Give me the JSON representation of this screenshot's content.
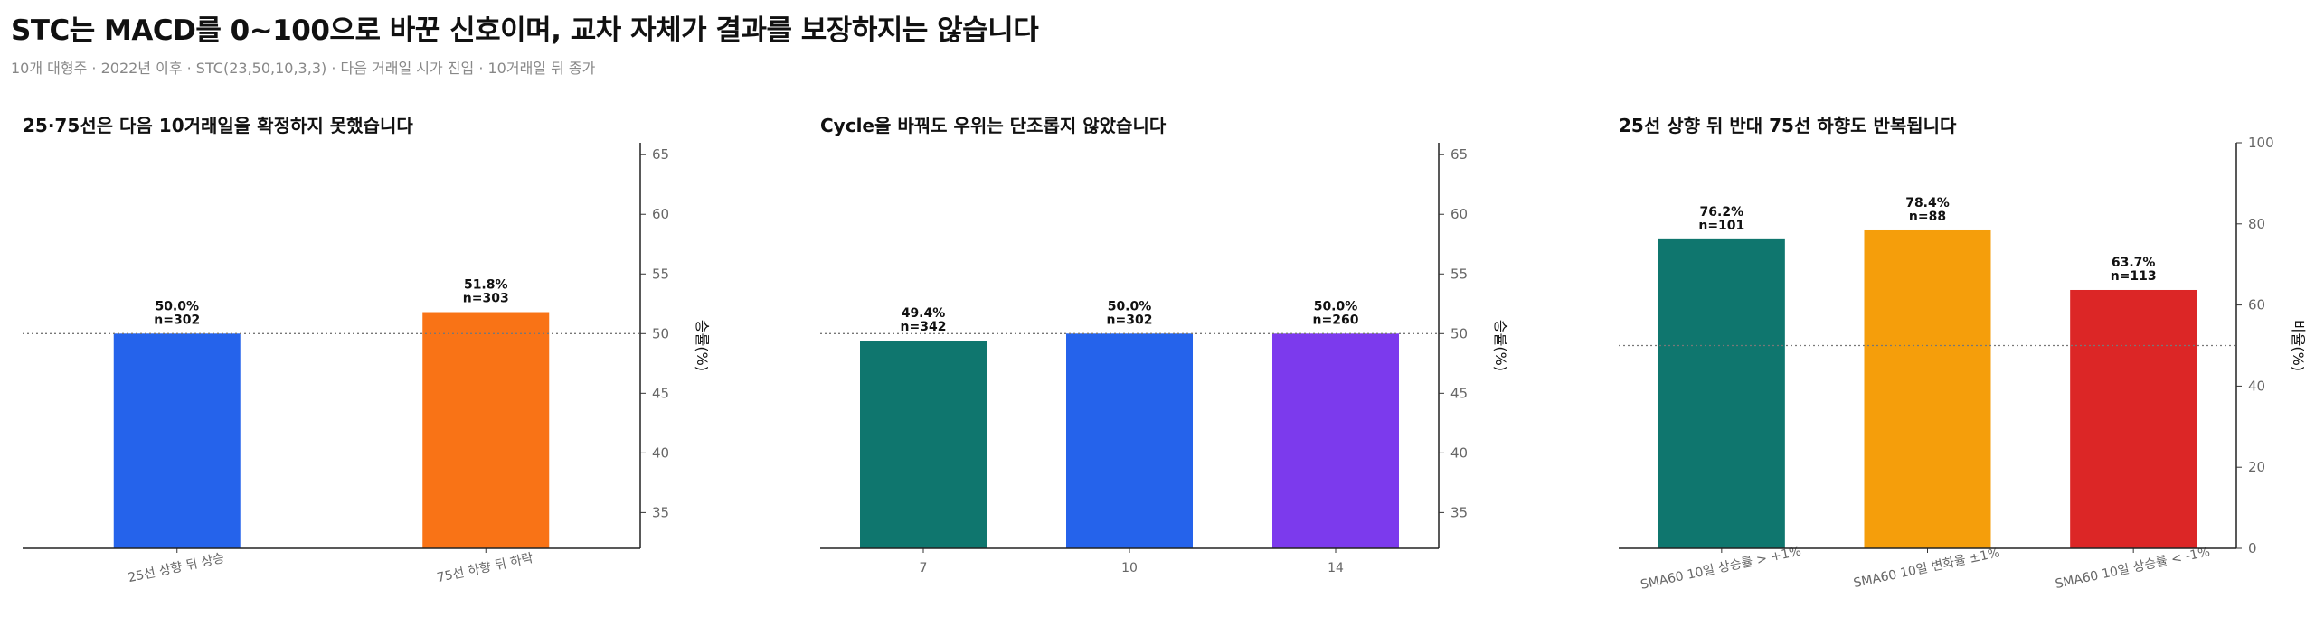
{
  "header": {
    "title": "STC는 MACD를 0~100으로 바꾼 신호이며, 교차 자체가 결과를 보장하지는 않습니다",
    "subtitle": "10개 대형주 · 2022년 이후 · STC(23,50,10,3,3) · 다음 거래일 시가 진입 · 10거래일 뒤 종가"
  },
  "chart_data": [
    {
      "type": "bar",
      "title": "25·75선은 다음 10거래일을 확정하지 못했습니다",
      "ylabel": "승률(%)",
      "ylim": [
        32,
        66
      ],
      "yticks": [
        35,
        40,
        45,
        50,
        55,
        60,
        65
      ],
      "reference_line": 50,
      "categories": [
        "25선 상향 뒤 상승",
        "75선 하향 뒤 하락"
      ],
      "values": [
        50.0,
        51.8
      ],
      "labels": [
        "50.0%",
        "51.8%"
      ],
      "n": [
        "n=302",
        "n=303"
      ],
      "colors": [
        "#2563EB",
        "#F97316"
      ],
      "xtick_rotation": 12,
      "grid": false
    },
    {
      "type": "bar",
      "title": "Cycle을 바꿔도 우위는 단조롭지 않았습니다",
      "ylabel": "승률(%)",
      "ylim": [
        32,
        66
      ],
      "yticks": [
        35,
        40,
        45,
        50,
        55,
        60,
        65
      ],
      "reference_line": 50,
      "categories": [
        "7",
        "10",
        "14"
      ],
      "values": [
        49.4,
        50.0,
        50.0
      ],
      "labels": [
        "49.4%",
        "50.0%",
        "50.0%"
      ],
      "n": [
        "n=342",
        "n=302",
        "n=260"
      ],
      "colors": [
        "#0F766E",
        "#2563EB",
        "#7C3AED"
      ],
      "xtick_rotation": 0,
      "grid": false
    },
    {
      "type": "bar",
      "title": "25선 상향 뒤 반대 75선 하향도 반복됩니다",
      "ylabel": "비율(%)",
      "ylim": [
        0,
        100
      ],
      "yticks": [
        0,
        20,
        40,
        60,
        80,
        100
      ],
      "reference_line": 50,
      "categories": [
        "SMA60 10일 상승률 > +1%",
        "SMA60 10일 변화율 ±1%",
        "SMA60 10일 상승률 < -1%"
      ],
      "values": [
        76.2,
        78.4,
        63.7
      ],
      "labels": [
        "76.2%",
        "78.4%",
        "63.7%"
      ],
      "n": [
        "n=101",
        "n=88",
        "n=113"
      ],
      "colors": [
        "#0F766E",
        "#F59E0B",
        "#DC2626"
      ],
      "xtick_rotation": 12,
      "grid": false
    }
  ]
}
